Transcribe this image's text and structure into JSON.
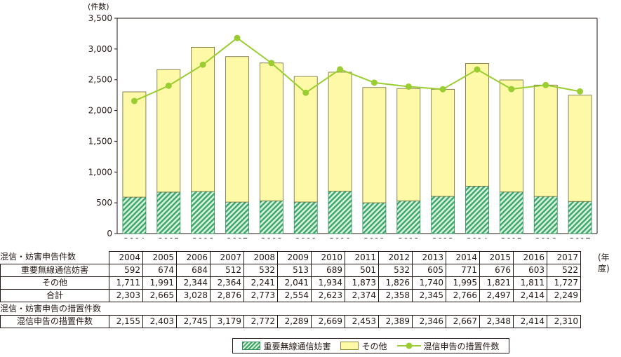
{
  "chart_data": {
    "type": "bar",
    "stacked": true,
    "y_unit": "(件数)",
    "ylim": [
      0,
      3500
    ],
    "yticks": [
      "0",
      "500",
      "1,000",
      "1,500",
      "2,000",
      "2,500",
      "3,000",
      "3,500"
    ],
    "categories": [
      "2004",
      "2005",
      "2006",
      "2007",
      "2008",
      "2009",
      "2010",
      "2011",
      "2012",
      "2013",
      "2014",
      "2015",
      "2016",
      "2017"
    ],
    "series": [
      {
        "name": "重要無線通信妨害",
        "kind": "bar",
        "color": "#3aa668",
        "values": [
          592,
          674,
          684,
          512,
          532,
          513,
          689,
          501,
          532,
          605,
          771,
          676,
          603,
          522
        ]
      },
      {
        "name": "その他",
        "kind": "bar",
        "color": "#fdf9a6",
        "values": [
          1711,
          1991,
          2344,
          2364,
          2241,
          2041,
          1934,
          1873,
          1826,
          1740,
          1995,
          1821,
          1811,
          1727
        ]
      },
      {
        "name": "混信申告の措置件数",
        "kind": "line",
        "color": "#9acd32",
        "values": [
          2155,
          2403,
          2745,
          3179,
          2772,
          2289,
          2669,
          2453,
          2389,
          2346,
          2667,
          2348,
          2414,
          2310
        ]
      }
    ],
    "grid": false,
    "legend_position": "bottom"
  },
  "table": {
    "section1_title": "混信・妨害申告件数",
    "section2_title": "混信・妨害申告の措置件数",
    "year_unit": "(年度)",
    "years": [
      "2004",
      "2005",
      "2006",
      "2007",
      "2008",
      "2009",
      "2010",
      "2011",
      "2012",
      "2013",
      "2014",
      "2015",
      "2016",
      "2017"
    ],
    "rows": [
      {
        "label": "重要無線通信妨害",
        "values": [
          "592",
          "674",
          "684",
          "512",
          "532",
          "513",
          "689",
          "501",
          "532",
          "605",
          "771",
          "676",
          "603",
          "522"
        ]
      },
      {
        "label": "その他",
        "values": [
          "1,711",
          "1,991",
          "2,344",
          "2,364",
          "2,241",
          "2,041",
          "1,934",
          "1,873",
          "1,826",
          "1,740",
          "1,995",
          "1,821",
          "1,811",
          "1,727"
        ]
      },
      {
        "label": "合計",
        "values": [
          "2,303",
          "2,665",
          "3,028",
          "2,876",
          "2,773",
          "2,554",
          "2,623",
          "2,374",
          "2,358",
          "2,345",
          "2,766",
          "2,497",
          "2,414",
          "2,249"
        ]
      }
    ],
    "measure_row": {
      "label": "混信申告の措置件数",
      "values": [
        "2,155",
        "2,403",
        "2,745",
        "3,179",
        "2,772",
        "2,289",
        "2,669",
        "2,453",
        "2,389",
        "2,346",
        "2,667",
        "2,348",
        "2,414",
        "2,310"
      ]
    }
  },
  "legend": {
    "item1": "重要無線通信妨害",
    "item2": "その他",
    "item3": "混信申告の措置件数"
  }
}
